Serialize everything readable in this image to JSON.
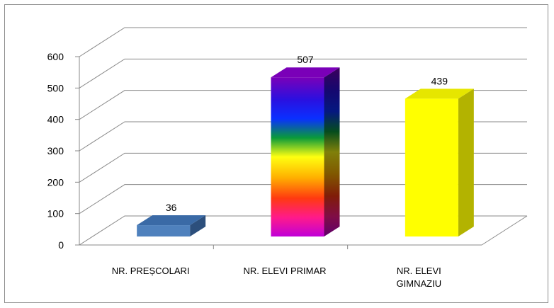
{
  "chart_data": {
    "type": "bar",
    "style": "3d-column",
    "categories": [
      [
        "NR. PREȘCOLARI"
      ],
      [
        "NR. ELEVI PRIMAR"
      ],
      [
        "NR. ELEVI",
        "GIMNAZIU"
      ]
    ],
    "values": [
      36,
      507,
      439
    ],
    "data_labels": [
      "36",
      "507",
      "439"
    ],
    "yticks": [
      "0",
      "100",
      "200",
      "300",
      "400",
      "500",
      "600"
    ],
    "ylim": [
      0,
      600
    ],
    "grid": true,
    "legend": "none",
    "title": "",
    "xlabel": "",
    "ylabel": "",
    "bar_colors": [
      "#4f81bd",
      "rainbow",
      "#ffff00"
    ]
  }
}
